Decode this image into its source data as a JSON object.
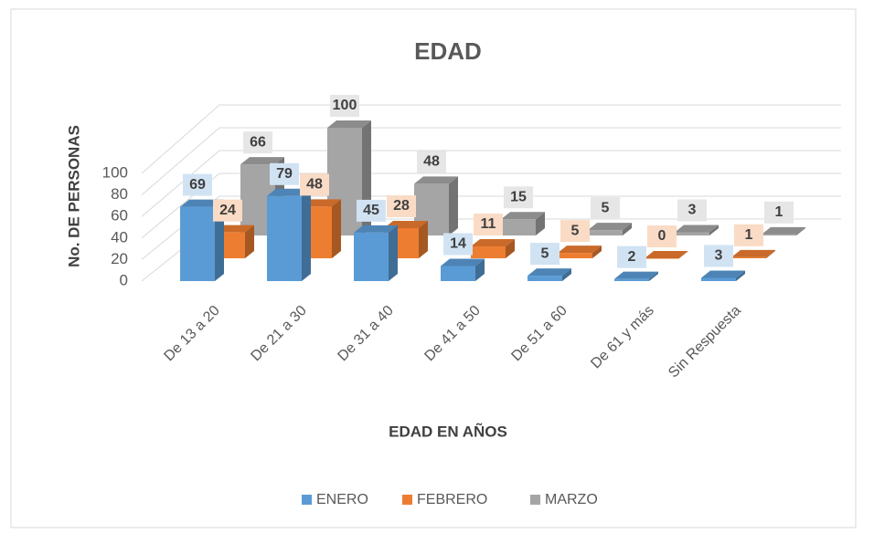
{
  "chart_data": {
    "type": "bar3d",
    "title": "EDAD",
    "y_label": "No. DE PERSONAS",
    "x_label": "EDAD EN AÑOS",
    "categories": [
      "De 13 a 20",
      "De 21 a 30",
      "De 31 a 40",
      "De 41 a 50",
      "De 51 a 60",
      "De 61 y más",
      "Sin Respuesta"
    ],
    "series": [
      {
        "name": "ENERO",
        "color": "#5B9BD5",
        "values": [
          69,
          79,
          45,
          14,
          5,
          2,
          3
        ]
      },
      {
        "name": "FEBRERO",
        "color": "#ED7D31",
        "values": [
          24,
          48,
          28,
          11,
          5,
          0,
          1
        ]
      },
      {
        "name": "MARZO",
        "color": "#A5A5A5",
        "values": [
          66,
          100,
          48,
          15,
          5,
          3,
          1
        ]
      }
    ],
    "ylim": [
      0,
      100
    ],
    "yticks": [
      0,
      20,
      40,
      60,
      80,
      100
    ],
    "grid": true,
    "legend": "bottom"
  }
}
